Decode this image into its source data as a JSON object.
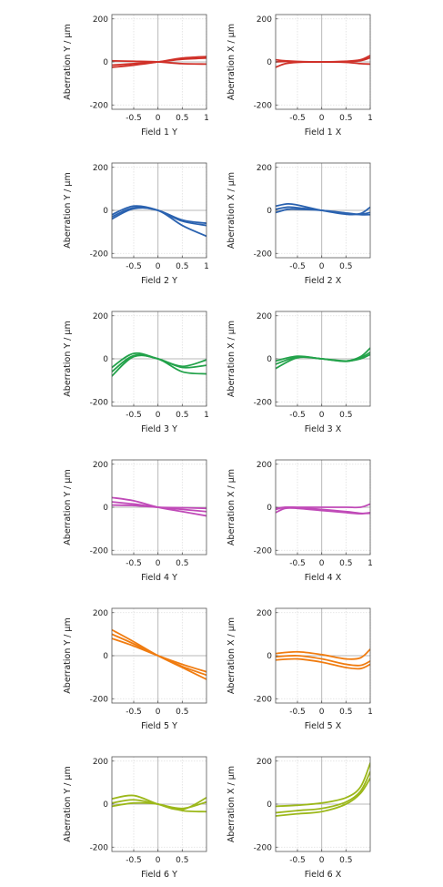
{
  "chart_data": [
    {
      "type": "line",
      "xlabel": "Field 1 Y",
      "ylabel": "Aberration Y / μm",
      "xlim": [
        -0.95,
        1.0
      ],
      "ylim": [
        -220,
        220
      ],
      "xticks": [
        -0.5,
        0,
        0.5,
        1
      ],
      "xtick_labels": [
        "-0.5",
        "0",
        "0.5",
        "1"
      ],
      "yticks": [
        -200,
        0,
        200
      ],
      "ytick_labels": [
        "-200",
        "0",
        "200"
      ],
      "color": "#d03028",
      "grid": true,
      "x": [
        -0.95,
        -0.5,
        0,
        0.5,
        1.0
      ],
      "series": [
        {
          "values": [
            -25,
            -15,
            0,
            18,
            25
          ]
        },
        {
          "values": [
            -15,
            -8,
            0,
            12,
            18
          ]
        },
        {
          "values": [
            5,
            3,
            0,
            -8,
            -10
          ]
        }
      ]
    },
    {
      "type": "line",
      "xlabel": "Field 1 X",
      "ylabel": "Aberration X / μm",
      "xlim": [
        -0.95,
        1.0
      ],
      "ylim": [
        -220,
        220
      ],
      "xticks": [
        -0.5,
        0,
        0.5,
        1
      ],
      "xtick_labels": [
        "-0.5",
        "0",
        "0.5",
        "1"
      ],
      "yticks": [
        -200,
        0,
        200
      ],
      "ytick_labels": [
        "-200",
        "0",
        "200"
      ],
      "color": "#d03028",
      "grid": true,
      "x": [
        -0.95,
        -0.75,
        -0.5,
        0,
        0.5,
        0.8,
        1.0
      ],
      "series": [
        {
          "values": [
            -25,
            -8,
            -2,
            0,
            -2,
            -8,
            -10
          ]
        },
        {
          "values": [
            10,
            5,
            2,
            0,
            2,
            6,
            20
          ]
        },
        {
          "values": [
            0,
            2,
            1,
            0,
            3,
            10,
            30
          ]
        }
      ]
    },
    {
      "type": "line",
      "xlabel": "Field 2 Y",
      "ylabel": "Aberration Y / μm",
      "xlim": [
        -0.95,
        1.0
      ],
      "ylim": [
        -220,
        220
      ],
      "xticks": [
        -0.5,
        0,
        0.5,
        1
      ],
      "xtick_labels": [
        "-0.5",
        "0",
        "0.5",
        "1"
      ],
      "yticks": [
        -200,
        0,
        200
      ],
      "ytick_labels": [
        "-200",
        "0",
        "200"
      ],
      "color": "#2a62b0",
      "grid": true,
      "x": [
        -0.95,
        -0.5,
        0,
        0.5,
        1.0
      ],
      "series": [
        {
          "values": [
            -20,
            20,
            0,
            -50,
            -70
          ]
        },
        {
          "values": [
            -30,
            12,
            0,
            -45,
            -60
          ]
        },
        {
          "values": [
            -40,
            8,
            0,
            -70,
            -120
          ]
        }
      ]
    },
    {
      "type": "line",
      "xlabel": "Field 2 X",
      "ylabel": "Aberration X / μm",
      "xlim": [
        -0.95,
        1.0
      ],
      "ylim": [
        -220,
        220
      ],
      "xticks": [
        -0.5,
        0,
        0.5
      ],
      "xtick_labels": [
        "-0.5",
        "0",
        "0.5"
      ],
      "yticks": [
        -200,
        0,
        200
      ],
      "ytick_labels": [
        "-200",
        "0",
        "200"
      ],
      "color": "#2a62b0",
      "grid": true,
      "x": [
        -0.95,
        -0.7,
        -0.5,
        0,
        0.5,
        0.8,
        1.0
      ],
      "series": [
        {
          "values": [
            20,
            30,
            25,
            0,
            -18,
            -15,
            15
          ]
        },
        {
          "values": [
            5,
            15,
            12,
            0,
            -15,
            -18,
            -10
          ]
        },
        {
          "values": [
            -10,
            5,
            5,
            0,
            -12,
            -20,
            -20
          ]
        }
      ]
    },
    {
      "type": "line",
      "xlabel": "Field 3 Y",
      "ylabel": "Aberration Y / μm",
      "xlim": [
        -0.95,
        1.0
      ],
      "ylim": [
        -220,
        220
      ],
      "xticks": [
        -0.5,
        0,
        0.5,
        1
      ],
      "xtick_labels": [
        "-0.5",
        "0",
        "0.5",
        "1"
      ],
      "yticks": [
        -200,
        0,
        200
      ],
      "ytick_labels": [
        "-200",
        "0",
        "200"
      ],
      "color": "#22a24a",
      "grid": true,
      "x": [
        -0.95,
        -0.5,
        0,
        0.5,
        1.0
      ],
      "series": [
        {
          "values": [
            -40,
            25,
            0,
            -35,
            -5
          ]
        },
        {
          "values": [
            -60,
            15,
            0,
            -40,
            -30
          ]
        },
        {
          "values": [
            -80,
            10,
            0,
            -60,
            -70
          ]
        }
      ]
    },
    {
      "type": "line",
      "xlabel": "Field 3 X",
      "ylabel": "Aberration X / μm",
      "xlim": [
        -0.95,
        1.0
      ],
      "ylim": [
        -220,
        220
      ],
      "xticks": [
        -0.5,
        0,
        0.5
      ],
      "xtick_labels": [
        "-0.5",
        "0",
        "0.5"
      ],
      "yticks": [
        -200,
        0,
        200
      ],
      "ytick_labels": [
        "-200",
        "0",
        "200"
      ],
      "color": "#22a24a",
      "grid": true,
      "x": [
        -0.95,
        -0.5,
        0,
        0.5,
        0.8,
        1.0
      ],
      "series": [
        {
          "values": [
            -10,
            12,
            0,
            -10,
            10,
            50
          ]
        },
        {
          "values": [
            -25,
            8,
            0,
            -12,
            5,
            30
          ]
        },
        {
          "values": [
            -45,
            5,
            0,
            -10,
            0,
            20
          ]
        }
      ]
    },
    {
      "type": "line",
      "xlabel": "Field 4 Y",
      "ylabel": "Aberration Y / μm",
      "xlim": [
        -0.95,
        1.0
      ],
      "ylim": [
        -220,
        220
      ],
      "xticks": [
        -0.5,
        0,
        0.5
      ],
      "xtick_labels": [
        "-0.5",
        "0",
        "0.5"
      ],
      "yticks": [
        -200,
        0,
        200
      ],
      "ytick_labels": [
        "-200",
        "0",
        "200"
      ],
      "color": "#c04ab8",
      "grid": true,
      "x": [
        -0.95,
        -0.5,
        0,
        0.5,
        1.0
      ],
      "series": [
        {
          "values": [
            45,
            30,
            0,
            -20,
            -40
          ]
        },
        {
          "values": [
            25,
            15,
            0,
            -10,
            -20
          ]
        },
        {
          "values": [
            10,
            8,
            0,
            -2,
            -5
          ]
        }
      ]
    },
    {
      "type": "line",
      "xlabel": "Field 4 X",
      "ylabel": "Aberration X / μm",
      "xlim": [
        -0.95,
        1.0
      ],
      "ylim": [
        -220,
        220
      ],
      "xticks": [
        -0.5,
        0,
        0.5,
        1
      ],
      "xtick_labels": [
        "-0.5",
        "0",
        "0.5",
        "1"
      ],
      "yticks": [
        -200,
        0,
        200
      ],
      "ytick_labels": [
        "-200",
        "0",
        "200"
      ],
      "color": "#c04ab8",
      "grid": true,
      "x": [
        -0.95,
        -0.75,
        -0.5,
        0,
        0.5,
        0.8,
        1.0
      ],
      "series": [
        {
          "values": [
            -25,
            -5,
            -5,
            -15,
            -25,
            -30,
            -25
          ]
        },
        {
          "values": [
            -10,
            0,
            -2,
            -10,
            -20,
            -28,
            -28
          ]
        },
        {
          "values": [
            -5,
            0,
            0,
            0,
            0,
            0,
            15
          ]
        }
      ]
    },
    {
      "type": "line",
      "xlabel": "Field 5 Y",
      "ylabel": "Aberration Y / μm",
      "xlim": [
        -0.95,
        1.0
      ],
      "ylim": [
        -220,
        220
      ],
      "xticks": [
        -0.5,
        0,
        0.5
      ],
      "xtick_labels": [
        "-0.5",
        "0",
        "0.5"
      ],
      "yticks": [
        -200,
        0,
        200
      ],
      "ytick_labels": [
        "-200",
        "0",
        "200"
      ],
      "color": "#f07c10",
      "grid": true,
      "x": [
        -0.95,
        -0.5,
        0,
        0.5,
        1.0
      ],
      "series": [
        {
          "values": [
            120,
            65,
            0,
            -55,
            -110
          ]
        },
        {
          "values": [
            100,
            55,
            0,
            -50,
            -90
          ]
        },
        {
          "values": [
            80,
            45,
            0,
            -40,
            -75
          ]
        }
      ]
    },
    {
      "type": "line",
      "xlabel": "Field 5 X",
      "ylabel": "Aberration X / μm",
      "xlim": [
        -0.95,
        1.0
      ],
      "ylim": [
        -220,
        220
      ],
      "xticks": [
        -0.5,
        0,
        0.5,
        1
      ],
      "xtick_labels": [
        "-0.5",
        "0",
        "0.5",
        "1"
      ],
      "yticks": [
        -200,
        0,
        200
      ],
      "ytick_labels": [
        "-200",
        "0",
        "200"
      ],
      "color": "#f07c10",
      "grid": true,
      "x": [
        -0.95,
        -0.5,
        0,
        0.5,
        0.8,
        1.0
      ],
      "series": [
        {
          "values": [
            10,
            18,
            5,
            -15,
            -10,
            30
          ]
        },
        {
          "values": [
            -5,
            0,
            -15,
            -40,
            -45,
            -25
          ]
        },
        {
          "values": [
            -20,
            -15,
            -30,
            -55,
            -60,
            -40
          ]
        }
      ]
    },
    {
      "type": "line",
      "xlabel": "Field 6 Y",
      "ylabel": "Aberration Y / μm",
      "xlim": [
        -0.95,
        1.0
      ],
      "ylim": [
        -220,
        220
      ],
      "xticks": [
        -0.5,
        0,
        0.5
      ],
      "xtick_labels": [
        "-0.5",
        "0",
        "0.5"
      ],
      "yticks": [
        -200,
        0,
        200
      ],
      "ytick_labels": [
        "-200",
        "0",
        "200"
      ],
      "color": "#9cb81a",
      "grid": true,
      "x": [
        -0.95,
        -0.5,
        0,
        0.5,
        1.0
      ],
      "series": [
        {
          "values": [
            25,
            40,
            0,
            -25,
            30
          ]
        },
        {
          "values": [
            5,
            20,
            0,
            -20,
            10
          ]
        },
        {
          "values": [
            -10,
            5,
            0,
            -30,
            -35
          ]
        }
      ]
    },
    {
      "type": "line",
      "xlabel": "Field 6 X",
      "ylabel": "Aberration X / μm",
      "xlim": [
        -0.95,
        1.0
      ],
      "ylim": [
        -220,
        220
      ],
      "xticks": [
        -0.5,
        0,
        0.5
      ],
      "xtick_labels": [
        "-0.5",
        "0",
        "0.5"
      ],
      "yticks": [
        -200,
        0,
        200
      ],
      "ytick_labels": [
        "-200",
        "0",
        "200"
      ],
      "color": "#9cb81a",
      "grid": true,
      "x": [
        -0.95,
        -0.5,
        0,
        0.5,
        0.8,
        1.0
      ],
      "series": [
        {
          "values": [
            -10,
            -5,
            5,
            30,
            80,
            190
          ]
        },
        {
          "values": [
            -40,
            -30,
            -20,
            10,
            60,
            150
          ]
        },
        {
          "values": [
            -55,
            -45,
            -35,
            0,
            50,
            120
          ]
        }
      ]
    }
  ]
}
